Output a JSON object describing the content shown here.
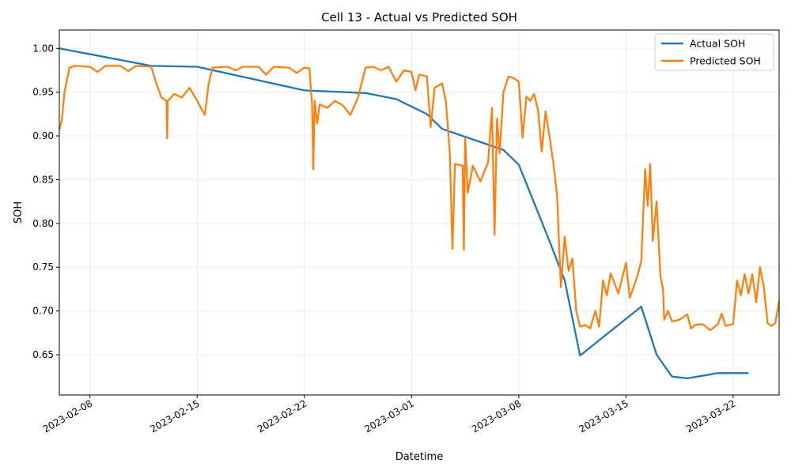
{
  "chart_data": {
    "type": "line",
    "title": "Cell 13 - Actual vs Predicted SOH",
    "xlabel": "Datetime",
    "ylabel": "SOH",
    "x_type": "date",
    "xlim": [
      "2023-02-06",
      "2023-03-25"
    ],
    "ylim": [
      0.604,
      1.021
    ],
    "x_ticks": [
      "2023-02-08",
      "2023-02-15",
      "2023-02-22",
      "2023-03-01",
      "2023-03-08",
      "2023-03-15",
      "2023-03-22"
    ],
    "y_ticks": [
      0.65,
      0.7,
      0.75,
      0.8,
      0.85,
      0.9,
      0.95,
      1.0
    ],
    "y_tick_labels": [
      "0.65",
      "0.70",
      "0.75",
      "0.80",
      "0.85",
      "0.90",
      "0.95",
      "1.00"
    ],
    "grid": true,
    "legend_position": "top-right",
    "series": [
      {
        "name": "Actual SOH",
        "color": "#1f77b4",
        "points": [
          [
            "2023-02-06",
            1.0
          ],
          [
            "2023-02-09",
            0.99
          ],
          [
            "2023-02-12",
            0.98
          ],
          [
            "2023-02-15",
            0.979
          ],
          [
            "2023-02-22",
            0.952
          ],
          [
            "2023-02-26",
            0.949
          ],
          [
            "2023-02-28",
            0.942
          ],
          [
            "2023-03-02",
            0.925
          ],
          [
            "2023-03-03",
            0.908
          ],
          [
            "2023-03-07",
            0.884
          ],
          [
            "2023-03-08",
            0.867
          ],
          [
            "2023-03-10",
            0.78
          ],
          [
            "2023-03-11",
            0.735
          ],
          [
            "2023-03-12",
            0.649
          ],
          [
            "2023-03-16",
            0.705
          ],
          [
            "2023-03-17",
            0.65
          ],
          [
            "2023-03-18",
            0.625
          ],
          [
            "2023-03-19",
            0.623
          ],
          [
            "2023-03-21",
            0.629
          ],
          [
            "2023-03-23",
            0.629
          ]
        ]
      },
      {
        "name": "Predicted SOH",
        "color": "#ff7f0e",
        "points": [
          [
            "2023-02-06",
            0.907
          ],
          [
            "2023-02-06 04:00",
            0.918
          ],
          [
            "2023-02-06 08:00",
            0.95
          ],
          [
            "2023-02-06 16:00",
            0.978
          ],
          [
            "2023-02-07",
            0.98
          ],
          [
            "2023-02-08",
            0.979
          ],
          [
            "2023-02-08 12:00",
            0.973
          ],
          [
            "2023-02-09",
            0.98
          ],
          [
            "2023-02-10",
            0.98
          ],
          [
            "2023-02-10 12:00",
            0.974
          ],
          [
            "2023-02-11",
            0.98
          ],
          [
            "2023-02-12",
            0.979
          ],
          [
            "2023-02-12 08:00",
            0.96
          ],
          [
            "2023-02-12 16:00",
            0.944
          ],
          [
            "2023-02-13",
            0.94
          ],
          [
            "2023-02-13 01:00",
            0.897
          ],
          [
            "2023-02-13 02:00",
            0.94
          ],
          [
            "2023-02-13 12:00",
            0.948
          ],
          [
            "2023-02-14",
            0.944
          ],
          [
            "2023-02-14 12:00",
            0.955
          ],
          [
            "2023-02-15",
            0.94
          ],
          [
            "2023-02-15 12:00",
            0.924
          ],
          [
            "2023-02-15 18:00",
            0.96
          ],
          [
            "2023-02-16",
            0.978
          ],
          [
            "2023-02-17",
            0.979
          ],
          [
            "2023-02-17 12:00",
            0.975
          ],
          [
            "2023-02-18",
            0.979
          ],
          [
            "2023-02-19",
            0.979
          ],
          [
            "2023-02-19 12:00",
            0.97
          ],
          [
            "2023-02-20",
            0.979
          ],
          [
            "2023-02-21",
            0.978
          ],
          [
            "2023-02-21 12:00",
            0.972
          ],
          [
            "2023-02-22",
            0.978
          ],
          [
            "2023-02-22 08:00",
            0.977
          ],
          [
            "2023-02-22 12:00",
            0.936
          ],
          [
            "2023-02-22 14:00",
            0.862
          ],
          [
            "2023-02-22 16:00",
            0.94
          ],
          [
            "2023-02-22 20:00",
            0.914
          ],
          [
            "2023-02-23",
            0.936
          ],
          [
            "2023-02-23 12:00",
            0.932
          ],
          [
            "2023-02-24",
            0.94
          ],
          [
            "2023-02-24 12:00",
            0.935
          ],
          [
            "2023-02-25",
            0.924
          ],
          [
            "2023-02-25 12:00",
            0.944
          ],
          [
            "2023-02-26",
            0.978
          ],
          [
            "2023-02-26 12:00",
            0.979
          ],
          [
            "2023-02-27",
            0.975
          ],
          [
            "2023-02-27 12:00",
            0.979
          ],
          [
            "2023-02-28",
            0.962
          ],
          [
            "2023-02-28 12:00",
            0.975
          ],
          [
            "2023-03-01",
            0.973
          ],
          [
            "2023-03-01 06:00",
            0.952
          ],
          [
            "2023-03-01 12:00",
            0.97
          ],
          [
            "2023-03-02",
            0.968
          ],
          [
            "2023-03-02 06:00",
            0.91
          ],
          [
            "2023-03-02 12:00",
            0.955
          ],
          [
            "2023-03-03",
            0.96
          ],
          [
            "2023-03-03 06:00",
            0.938
          ],
          [
            "2023-03-03 12:00",
            0.88
          ],
          [
            "2023-03-03 16:00",
            0.771
          ],
          [
            "2023-03-03 20:00",
            0.868
          ],
          [
            "2023-03-04 08:00",
            0.866
          ],
          [
            "2023-03-04 10:00",
            0.77
          ],
          [
            "2023-03-04 12:00",
            0.898
          ],
          [
            "2023-03-04 16:00",
            0.835
          ],
          [
            "2023-03-05",
            0.866
          ],
          [
            "2023-03-05 12:00",
            0.848
          ],
          [
            "2023-03-06",
            0.87
          ],
          [
            "2023-03-06 06:00",
            0.932
          ],
          [
            "2023-03-06 10:00",
            0.787
          ],
          [
            "2023-03-06 14:00",
            0.92
          ],
          [
            "2023-03-06 18:00",
            0.88
          ],
          [
            "2023-03-07",
            0.95
          ],
          [
            "2023-03-07 08:00",
            0.968
          ],
          [
            "2023-03-07 16:00",
            0.966
          ],
          [
            "2023-03-08",
            0.962
          ],
          [
            "2023-03-08 06:00",
            0.898
          ],
          [
            "2023-03-08 12:00",
            0.945
          ],
          [
            "2023-03-08 18:00",
            0.94
          ],
          [
            "2023-03-09",
            0.948
          ],
          [
            "2023-03-09 06:00",
            0.93
          ],
          [
            "2023-03-09 12:00",
            0.882
          ],
          [
            "2023-03-09 18:00",
            0.928
          ],
          [
            "2023-03-10",
            0.9
          ],
          [
            "2023-03-10 06:00",
            0.87
          ],
          [
            "2023-03-10 12:00",
            0.832
          ],
          [
            "2023-03-10 18:00",
            0.727
          ],
          [
            "2023-03-11",
            0.785
          ],
          [
            "2023-03-11 06:00",
            0.746
          ],
          [
            "2023-03-11 12:00",
            0.76
          ],
          [
            "2023-03-11 18:00",
            0.7
          ],
          [
            "2023-03-12",
            0.682
          ],
          [
            "2023-03-12 08:00",
            0.684
          ],
          [
            "2023-03-12 16:00",
            0.68
          ],
          [
            "2023-03-13",
            0.7
          ],
          [
            "2023-03-13 06:00",
            0.682
          ],
          [
            "2023-03-13 12:00",
            0.735
          ],
          [
            "2023-03-13 18:00",
            0.718
          ],
          [
            "2023-03-14",
            0.743
          ],
          [
            "2023-03-14 12:00",
            0.72
          ],
          [
            "2023-03-15",
            0.755
          ],
          [
            "2023-03-15 06:00",
            0.715
          ],
          [
            "2023-03-15 18:00",
            0.74
          ],
          [
            "2023-03-16",
            0.757
          ],
          [
            "2023-03-16 06:00",
            0.862
          ],
          [
            "2023-03-16 10:00",
            0.82
          ],
          [
            "2023-03-16 14:00",
            0.868
          ],
          [
            "2023-03-16 18:00",
            0.78
          ],
          [
            "2023-03-17",
            0.825
          ],
          [
            "2023-03-17 06:00",
            0.74
          ],
          [
            "2023-03-17 10:00",
            0.725
          ],
          [
            "2023-03-17 12:00",
            0.69
          ],
          [
            "2023-03-17 18:00",
            0.7
          ],
          [
            "2023-03-18",
            0.688
          ],
          [
            "2023-03-18 12:00",
            0.69
          ],
          [
            "2023-03-19",
            0.696
          ],
          [
            "2023-03-19 06:00",
            0.68
          ],
          [
            "2023-03-19 12:00",
            0.684
          ],
          [
            "2023-03-20",
            0.685
          ],
          [
            "2023-03-20 12:00",
            0.678
          ],
          [
            "2023-03-21",
            0.685
          ],
          [
            "2023-03-21 06:00",
            0.697
          ],
          [
            "2023-03-21 12:00",
            0.683
          ],
          [
            "2023-03-22",
            0.685
          ],
          [
            "2023-03-22 06:00",
            0.735
          ],
          [
            "2023-03-22 12:00",
            0.718
          ],
          [
            "2023-03-22 18:00",
            0.742
          ],
          [
            "2023-03-23",
            0.72
          ],
          [
            "2023-03-23 06:00",
            0.742
          ],
          [
            "2023-03-23 12:00",
            0.71
          ],
          [
            "2023-03-23 18:00",
            0.75
          ],
          [
            "2023-03-24",
            0.728
          ],
          [
            "2023-03-24 06:00",
            0.686
          ],
          [
            "2023-03-24 12:00",
            0.683
          ],
          [
            "2023-03-24 18:00",
            0.686
          ],
          [
            "2023-03-25",
            0.711
          ]
        ]
      }
    ]
  }
}
